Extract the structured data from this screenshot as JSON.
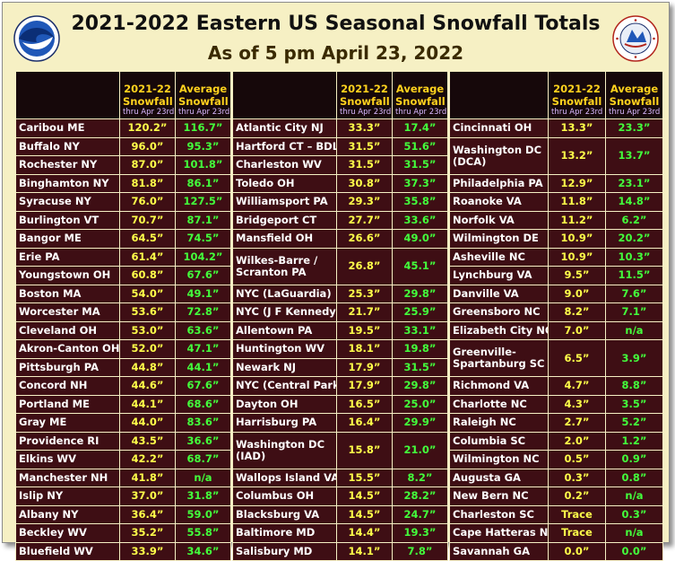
{
  "title": "2021-2022 Eastern US Seasonal Snowfall Totals",
  "subtitle": "As of 5 pm April 23, 2022",
  "logos": {
    "left": "noaa-logo",
    "right": "nws-logo"
  },
  "headers": {
    "col1_line1": "2021-22",
    "col1_line2": "Snowfall",
    "col2_line1": "Average",
    "col2_line2": "Snowfall",
    "sub": "thru Apr 23rd"
  },
  "columns": [
    {
      "rows": [
        {
          "name": "Caribou ME",
          "season": "120.2”",
          "avg": "116.7”"
        },
        {
          "name": "Buffalo NY",
          "season": "96.0”",
          "avg": "95.3”"
        },
        {
          "name": "Rochester NY",
          "season": "87.0”",
          "avg": "101.8”"
        },
        {
          "name": "Binghamton NY",
          "season": "81.8”",
          "avg": "86.1”"
        },
        {
          "name": "Syracuse NY",
          "season": "76.0”",
          "avg": "127.5”"
        },
        {
          "name": "Burlington VT",
          "season": "70.7”",
          "avg": "87.1”"
        },
        {
          "name": "Bangor ME",
          "season": "64.5”",
          "avg": "74.5”"
        },
        {
          "name": "Erie PA",
          "season": "61.4”",
          "avg": "104.2”"
        },
        {
          "name": "Youngstown OH",
          "season": "60.8”",
          "avg": "67.6”"
        },
        {
          "name": "Boston MA",
          "season": "54.0”",
          "avg": "49.1”"
        },
        {
          "name": "Worcester MA",
          "season": "53.6”",
          "avg": "72.8”"
        },
        {
          "name": "Cleveland OH",
          "season": "53.0”",
          "avg": "63.6”"
        },
        {
          "name": "Akron-Canton OH",
          "season": "52.0”",
          "avg": "47.1”"
        },
        {
          "name": "Pittsburgh PA",
          "season": "44.8”",
          "avg": "44.1”"
        },
        {
          "name": "Concord NH",
          "season": "44.6”",
          "avg": "67.6”"
        },
        {
          "name": "Portland ME",
          "season": "44.1”",
          "avg": "68.6”"
        },
        {
          "name": "Gray ME",
          "season": "44.0”",
          "avg": "83.6”"
        },
        {
          "name": "Providence RI",
          "season": "43.5”",
          "avg": "36.6”"
        },
        {
          "name": "Elkins WV",
          "season": "42.2”",
          "avg": "68.7”"
        },
        {
          "name": "Manchester NH",
          "season": "41.8”",
          "avg": "n/a"
        },
        {
          "name": "Islip NY",
          "season": "37.0”",
          "avg": "31.8”"
        },
        {
          "name": "Albany NY",
          "season": "36.4”",
          "avg": "59.0”"
        },
        {
          "name": "Beckley WV",
          "season": "35.2”",
          "avg": "55.8”"
        },
        {
          "name": "Bluefield WV",
          "season": "33.9”",
          "avg": "34.6”"
        }
      ]
    },
    {
      "rows": [
        {
          "name": "Atlantic City NJ",
          "season": "33.3”",
          "avg": "17.4”"
        },
        {
          "name": "Hartford CT – BDL",
          "season": "31.5”",
          "avg": "51.6”"
        },
        {
          "name": "Charleston WV",
          "season": "31.5”",
          "avg": "31.5”"
        },
        {
          "name": "Toledo OH",
          "season": "30.8”",
          "avg": "37.3”"
        },
        {
          "name": "Williamsport PA",
          "season": "29.3”",
          "avg": "35.8”"
        },
        {
          "name": "Bridgeport CT",
          "season": "27.7”",
          "avg": "33.6”"
        },
        {
          "name": "Mansfield OH",
          "season": "26.6”",
          "avg": "49.0”"
        },
        {
          "name": "Wilkes-Barre / Scranton PA",
          "season": "26.8”",
          "avg": "45.1”",
          "tall": true
        },
        {
          "name": "NYC (LaGuardia)",
          "season": "25.3”",
          "avg": "29.8”"
        },
        {
          "name": "NYC (J F Kennedy)",
          "season": "21.7”",
          "avg": "25.9”"
        },
        {
          "name": "Allentown PA",
          "season": "19.5”",
          "avg": "33.1”"
        },
        {
          "name": "Huntington WV",
          "season": "18.1”",
          "avg": "19.8”"
        },
        {
          "name": "Newark NJ",
          "season": "17.9”",
          "avg": "31.5”"
        },
        {
          "name": "NYC (Central Park)",
          "season": "17.9”",
          "avg": "29.8”"
        },
        {
          "name": "Dayton OH",
          "season": "16.5”",
          "avg": "25.0”"
        },
        {
          "name": "Harrisburg PA",
          "season": "16.4”",
          "avg": "29.9”"
        },
        {
          "name": "Washington DC (IAD)",
          "season": "15.8”",
          "avg": "21.0”",
          "tall": true
        },
        {
          "name": "Wallops Island VA",
          "season": "15.5”",
          "avg": "8.2”"
        },
        {
          "name": "Columbus OH",
          "season": "14.5”",
          "avg": "28.2”"
        },
        {
          "name": "Blacksburg VA",
          "season": "14.5”",
          "avg": "24.7”"
        },
        {
          "name": "Baltimore MD",
          "season": "14.4”",
          "avg": "19.3”"
        },
        {
          "name": "Salisbury MD",
          "season": "14.1”",
          "avg": "7.8”"
        }
      ]
    },
    {
      "rows": [
        {
          "name": "Cincinnati OH",
          "season": "13.3”",
          "avg": "23.3”"
        },
        {
          "name": "Washington DC (DCA)",
          "season": "13.2”",
          "avg": "13.7”",
          "tall": true
        },
        {
          "name": "Philadelphia PA",
          "season": "12.9”",
          "avg": "23.1”"
        },
        {
          "name": "Roanoke VA",
          "season": "11.8”",
          "avg": "14.8”"
        },
        {
          "name": "Norfolk VA",
          "season": "11.2”",
          "avg": "6.2”"
        },
        {
          "name": "Wilmington DE",
          "season": "10.9”",
          "avg": "20.2”"
        },
        {
          "name": "Asheville NC",
          "season": "10.9”",
          "avg": "10.3”"
        },
        {
          "name": "Lynchburg VA",
          "season": "9.5”",
          "avg": "11.5”"
        },
        {
          "name": "Danville VA",
          "season": "9.0”",
          "avg": "7.6”"
        },
        {
          "name": "Greensboro NC",
          "season": "8.2”",
          "avg": "7.1”"
        },
        {
          "name": "Elizabeth City NC",
          "season": "7.0”",
          "avg": "n/a"
        },
        {
          "name": "Greenville-Spartanburg SC",
          "season": "6.5”",
          "avg": "3.9”",
          "tall": true
        },
        {
          "name": "Richmond VA",
          "season": "4.7”",
          "avg": "8.8”"
        },
        {
          "name": "Charlotte NC",
          "season": "4.3”",
          "avg": "3.5”"
        },
        {
          "name": "Raleigh NC",
          "season": "2.7”",
          "avg": "5.2”"
        },
        {
          "name": "Columbia SC",
          "season": "2.0”",
          "avg": "1.2”"
        },
        {
          "name": "Wilmington NC",
          "season": "0.5”",
          "avg": "0.9”"
        },
        {
          "name": "Augusta GA",
          "season": "0.3”",
          "avg": "0.8”"
        },
        {
          "name": "New Bern NC",
          "season": "0.2”",
          "avg": "n/a"
        },
        {
          "name": "Charleston SC",
          "season": "Trace",
          "avg": "0.3”"
        },
        {
          "name": "Cape Hatteras NC",
          "season": "Trace",
          "avg": "n/a"
        },
        {
          "name": "Savannah GA",
          "season": "0.0”",
          "avg": "0.0”"
        }
      ]
    }
  ]
}
